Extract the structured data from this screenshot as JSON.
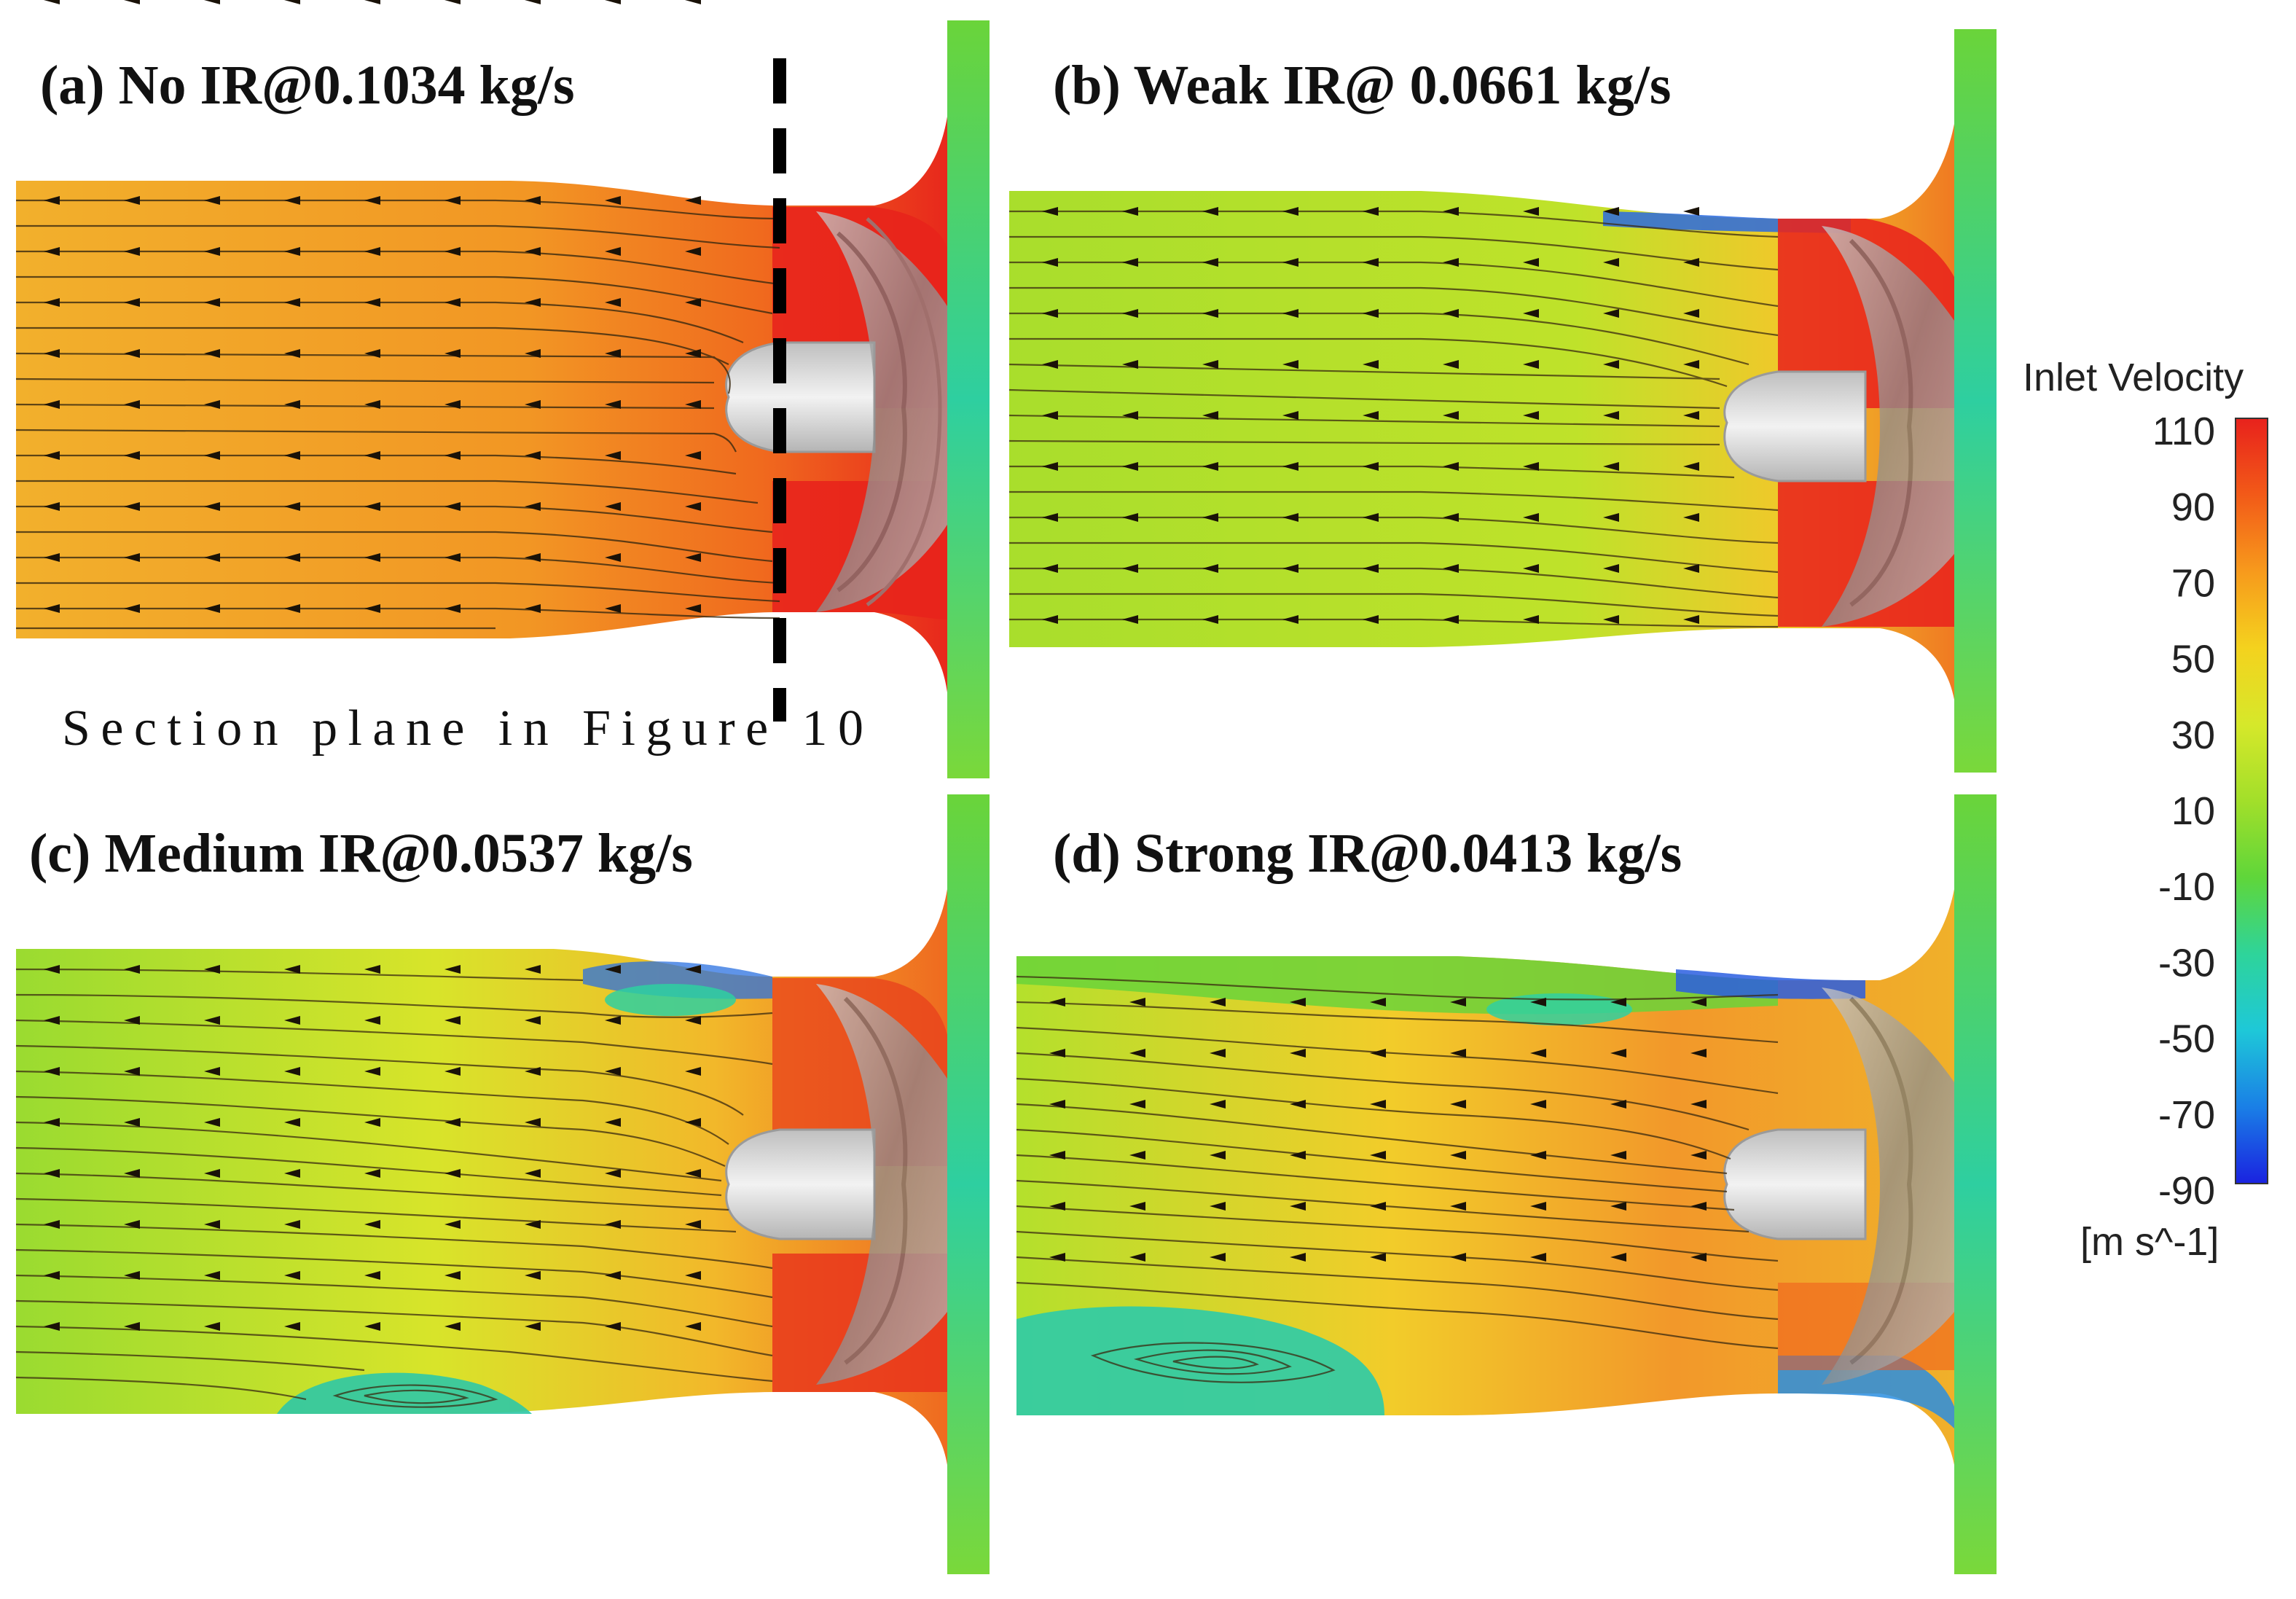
{
  "panels": {
    "a": {
      "title": "(a) No IR@0.1034 kg/s"
    },
    "b": {
      "title": "(b) Weak IR@ 0.0661 kg/s"
    },
    "c": {
      "title": "(c) Medium IR@0.0537 kg/s"
    },
    "d": {
      "title": "(d) Strong IR@0.0413 kg/s"
    }
  },
  "section_plane_label": "Section plane in Figure 10",
  "colorbar": {
    "title": "Inlet Velocity",
    "ticks": [
      "110",
      "90",
      "70",
      "50",
      "30",
      "10",
      "-10",
      "-30",
      "-50",
      "-70",
      "-90"
    ],
    "unit": "[m s^-1]",
    "stops": [
      "#e8221c",
      "#f25a18",
      "#f79a1c",
      "#f4d21e",
      "#d6e82a",
      "#a2df2a",
      "#5fd63a",
      "#2ed49a",
      "#1ec8d8",
      "#1a7fe6",
      "#1a22e0"
    ]
  },
  "colors": {
    "strong": "#e8231c",
    "high": "#f0641c",
    "mid_high": "#f29a22",
    "mid": "#f1c52a",
    "low": "#a6dd30",
    "lowest": "#7cd63a",
    "reverse": "#22c8b4",
    "blue": "#2a5ee0",
    "hub": "#dcdcdc",
    "impeller": "#a9a9a9"
  }
}
